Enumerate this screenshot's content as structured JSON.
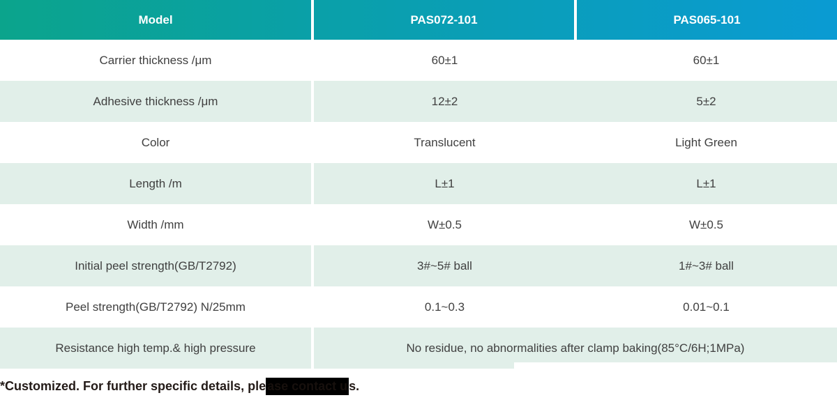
{
  "table": {
    "header": {
      "model_label": "Model",
      "columns": [
        "PAS072-101",
        "PAS065-101"
      ]
    },
    "rows": [
      {
        "label": "Carrier thickness /μm",
        "values": [
          "60±1",
          "60±1"
        ]
      },
      {
        "label": "Adhesive thickness /μm",
        "values": [
          "12±2",
          "5±2"
        ]
      },
      {
        "label": "Color",
        "values": [
          "Translucent",
          "Light Green"
        ]
      },
      {
        "label": "Length /m",
        "values": [
          "L±1",
          "L±1"
        ]
      },
      {
        "label": "Width /mm",
        "values": [
          "W±0.5",
          "W±0.5"
        ]
      },
      {
        "label": "Initial peel strength(GB/T2792)",
        "values": [
          "3#~5# ball",
          "1#~3# ball"
        ]
      },
      {
        "label": "Peel strength(GB/T2792)  N/25mm",
        "values": [
          "0.1~0.3",
          "0.01~0.1"
        ]
      },
      {
        "label": "Resistance high temp.& high pressure",
        "merged_value": "No residue, no abnormalities after clamp baking(85°C/6H;1MPa)"
      }
    ]
  },
  "footnote": {
    "prefix": "*Customized. For further specific details, ple",
    "redacted": "ase contact u",
    "suffix": "s."
  },
  "colors": {
    "header_gradient_start": "#0ba48c",
    "header_gradient_end": "#0a9bd3",
    "row_alt_background": "#e1efe9",
    "body_text": "#404040",
    "header_text": "#ffffff",
    "footnote_text": "#231a17",
    "redaction": "#000000"
  }
}
